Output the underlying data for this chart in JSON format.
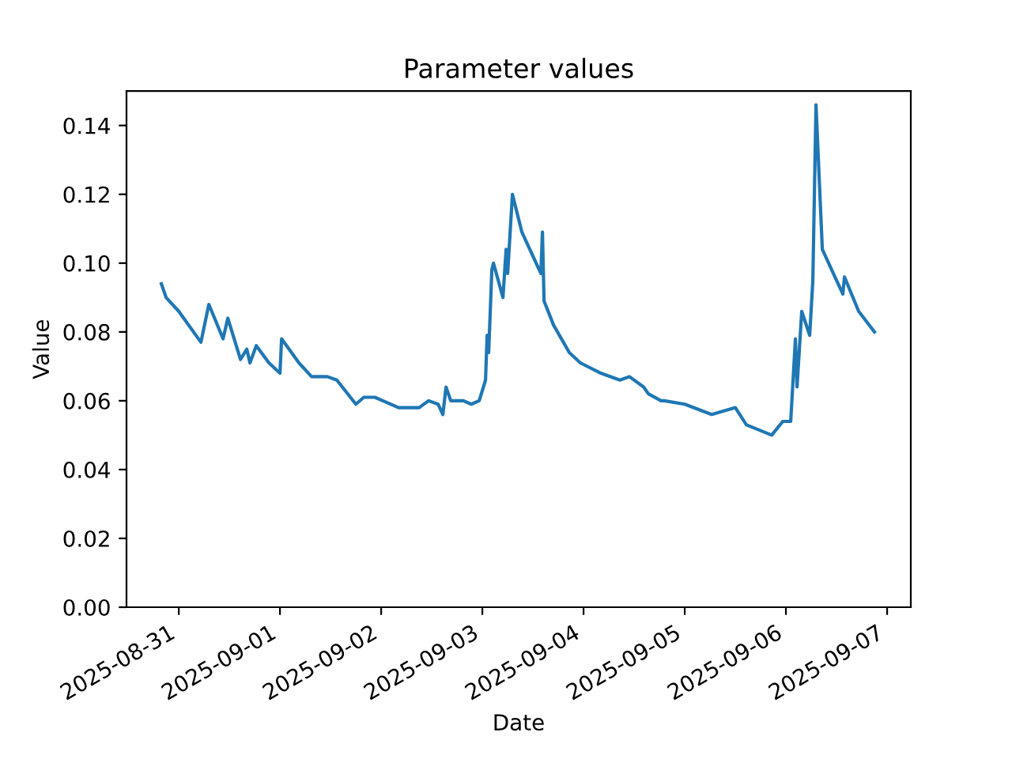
{
  "chart_data": {
    "type": "line",
    "title": "Parameter values",
    "xlabel": "Date",
    "ylabel": "Value",
    "x": [
      "2025-08-30T19:52",
      "2025-08-30T21:00",
      "2025-08-31T00:00",
      "2025-08-31T05:15",
      "2025-08-31T07:08",
      "2025-08-31T10:30",
      "2025-08-31T11:38",
      "2025-08-31T14:38",
      "2025-08-31T16:08",
      "2025-08-31T16:53",
      "2025-08-31T18:23",
      "2025-08-31T21:23",
      "2025-09-01T00:00",
      "2025-09-01T00:23",
      "2025-09-01T04:30",
      "2025-09-01T07:30",
      "2025-09-01T11:15",
      "2025-09-01T13:30",
      "2025-09-01T18:00",
      "2025-09-01T19:53",
      "2025-09-01T22:30",
      "2025-09-02T00:23",
      "2025-09-02T04:08",
      "2025-09-02T09:00",
      "2025-09-02T11:15",
      "2025-09-02T13:30",
      "2025-09-02T14:38",
      "2025-09-02T15:23",
      "2025-09-02T16:30",
      "2025-09-02T19:30",
      "2025-09-02T21:23",
      "2025-09-02T23:15",
      "2025-09-03T00:45",
      "2025-09-03T01:08",
      "2025-09-03T01:30",
      "2025-09-03T02:15",
      "2025-09-03T02:38",
      "2025-09-03T04:53",
      "2025-09-03T05:38",
      "2025-09-03T06:00",
      "2025-09-03T07:08",
      "2025-09-03T09:23",
      "2025-09-03T13:53",
      "2025-09-03T14:15",
      "2025-09-03T14:38",
      "2025-09-03T16:53",
      "2025-09-03T20:38",
      "2025-09-03T23:15",
      "2025-09-04T04:08",
      "2025-09-04T08:38",
      "2025-09-04T10:53",
      "2025-09-04T14:15",
      "2025-09-04T15:23",
      "2025-09-04T18:23",
      "2025-09-04T19:08",
      "2025-09-05T00:00",
      "2025-09-05T06:23",
      "2025-09-05T12:00",
      "2025-09-05T14:38",
      "2025-09-05T20:38",
      "2025-09-05T23:15",
      "2025-09-06T01:08",
      "2025-09-06T02:15",
      "2025-09-06T02:38",
      "2025-09-06T03:45",
      "2025-09-06T05:38",
      "2025-09-06T06:23",
      "2025-09-06T07:08",
      "2025-09-06T08:38",
      "2025-09-06T11:15",
      "2025-09-06T13:30",
      "2025-09-06T13:53",
      "2025-09-06T17:15",
      "2025-09-06T21:00"
    ],
    "series": [
      {
        "color": "#1f77b4",
        "values": [
          0.094,
          0.09,
          0.086,
          0.077,
          0.088,
          0.078,
          0.084,
          0.072,
          0.075,
          0.071,
          0.076,
          0.071,
          0.068,
          0.078,
          0.071,
          0.067,
          0.067,
          0.066,
          0.059,
          0.061,
          0.061,
          0.06,
          0.058,
          0.058,
          0.06,
          0.059,
          0.056,
          0.064,
          0.06,
          0.06,
          0.059,
          0.06,
          0.066,
          0.079,
          0.074,
          0.098,
          0.1,
          0.09,
          0.104,
          0.097,
          0.12,
          0.109,
          0.097,
          0.109,
          0.089,
          0.082,
          0.074,
          0.071,
          0.068,
          0.066,
          0.067,
          0.064,
          0.062,
          0.06,
          0.06,
          0.059,
          0.056,
          0.058,
          0.053,
          0.05,
          0.054,
          0.054,
          0.078,
          0.064,
          0.086,
          0.079,
          0.095,
          0.146,
          0.104,
          0.097,
          0.091,
          0.096,
          0.086,
          0.08
        ]
      }
    ],
    "xlim": [
      "2025-08-30T11:36",
      "2025-09-07T05:37"
    ],
    "xticks": [
      "2025-08-31",
      "2025-09-01",
      "2025-09-02",
      "2025-09-03",
      "2025-09-04",
      "2025-09-05",
      "2025-09-06",
      "2025-09-07"
    ],
    "ylim": [
      0,
      0.15
    ],
    "yticks": [
      {
        "value": 0,
        "label": "0.00"
      },
      {
        "value": 0.02,
        "label": "0.02"
      },
      {
        "value": 0.04,
        "label": "0.04"
      },
      {
        "value": 0.06,
        "label": "0.06"
      },
      {
        "value": 0.08,
        "label": "0.08"
      },
      {
        "value": 0.1,
        "label": "0.10"
      },
      {
        "value": 0.12,
        "label": "0.12"
      },
      {
        "value": 0.14,
        "label": "0.14"
      }
    ],
    "grid": false,
    "line_style": "solid",
    "marker": "none"
  }
}
